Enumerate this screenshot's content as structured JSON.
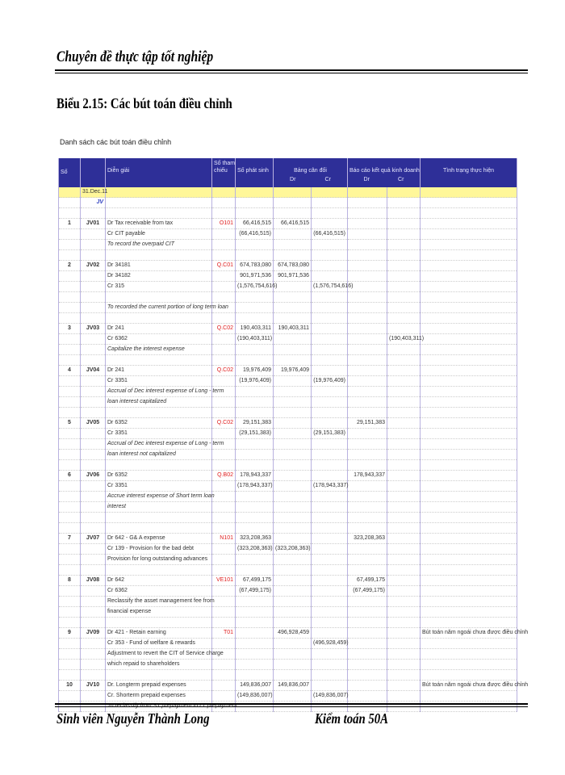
{
  "header": {
    "title": "Chuyên đề thực tập tốt nghiệp"
  },
  "doc_title": "Biểu 2.15: Các bút toán điều chỉnh",
  "table_title": "Danh sách các bút toán điều chỉnh",
  "columns": {
    "so": "Số",
    "dien_giai": "Diễn giải",
    "so_tham_chieu_1": "Số tham",
    "so_tham_chieu_2": "chiếu",
    "so_phat_sinh": "Số phát sinh",
    "bang_can_doi": "Bảng cân đối",
    "bao_cao_kqkd": "Báo cáo kết quả kinh doanh",
    "tinh_trang": "Tình trạng thực hiện",
    "dr": "Dr",
    "cr": "Cr"
  },
  "date_row": "31.Dec.11",
  "marker": "JV",
  "entries": [
    {
      "no": "1",
      "jv": "JV01",
      "ref": "O101",
      "lines": [
        [
          "Dr Tax receivable from tax",
          "66,416,515",
          "66,416,515",
          "",
          "",
          "",
          ""
        ],
        [
          "Cr CIT payable",
          "(66,416,515)",
          "",
          "(66,416,515)",
          "",
          "",
          ""
        ],
        [
          "To record the overpaid CIT",
          "",
          "",
          "",
          "",
          "",
          ""
        ]
      ],
      "gap": 1
    },
    {
      "no": "2",
      "jv": "JV02",
      "ref": "Q.C01",
      "lines": [
        [
          "Dr 34181",
          "674,783,080",
          "674,783,080",
          "",
          "",
          "",
          ""
        ],
        [
          "Dr 34182",
          "901,971,536",
          "901,971,536",
          "",
          "",
          "",
          ""
        ],
        [
          "Cr 315",
          "(1,576,754,616)",
          "",
          "(1,576,754,616)",
          "",
          "",
          ""
        ],
        [
          "",
          "",
          "",
          "",
          "",
          "",
          ""
        ],
        [
          "To recorded the current portion of long term loan",
          "",
          "",
          "",
          "",
          "",
          ""
        ]
      ],
      "gap": 1
    },
    {
      "no": "3",
      "jv": "JV03",
      "ref": "Q.C02",
      "lines": [
        [
          "Dr 241",
          "190,403,311",
          "190,403,311",
          "",
          "",
          "",
          ""
        ],
        [
          "Cr 6362",
          "(190,403,311)",
          "",
          "",
          "",
          "(190,403,311)",
          ""
        ],
        [
          "Capitalize the interest expense",
          "",
          "",
          "",
          "",
          "",
          ""
        ]
      ],
      "gap": 1
    },
    {
      "no": "4",
      "jv": "JV04",
      "ref": "Q.C02",
      "lines": [
        [
          "Dr 241",
          "19,976,409",
          "19,976,409",
          "",
          "",
          "",
          ""
        ],
        [
          "Cr 3351",
          "(19,976,409)",
          "",
          "(19,976,409)",
          "",
          "",
          ""
        ],
        [
          "Accrual of Dec interest expense of Long - term",
          "",
          "",
          "",
          "",
          "",
          ""
        ],
        [
          "loan interest capitalized",
          "",
          "",
          "",
          "",
          "",
          ""
        ]
      ],
      "gap": 1
    },
    {
      "no": "5",
      "jv": "JV05",
      "ref": "Q.C02",
      "lines": [
        [
          "Dr 6352",
          "29,151,383",
          "",
          "",
          "29,151,383",
          "",
          ""
        ],
        [
          "Cr 3351",
          "(29,151,383)",
          "",
          "(29,151,383)",
          "",
          "",
          ""
        ],
        [
          "Accrual of Dec interest expense of Long - term",
          "",
          "",
          "",
          "",
          "",
          ""
        ],
        [
          "loan interest not capitalized",
          "",
          "",
          "",
          "",
          "",
          ""
        ]
      ],
      "gap": 1
    },
    {
      "no": "6",
      "jv": "JV06",
      "ref": "Q.B02",
      "lines": [
        [
          "Dr 6352",
          "178,943,337",
          "",
          "",
          "178,943,337",
          "",
          ""
        ],
        [
          "Cr 3351",
          "(178,943,337)",
          "",
          "(178,943,337)",
          "",
          "",
          ""
        ],
        [
          "Accrue interest expense of Short term loan",
          "",
          "",
          "",
          "",
          "",
          ""
        ],
        [
          "interest",
          "",
          "",
          "",
          "",
          "",
          ""
        ]
      ],
      "gap": 2
    },
    {
      "no": "7",
      "jv": "JV07",
      "ref": "N101",
      "lines": [
        [
          "Dr 642 - G& A expense",
          "323,208,363",
          "",
          "",
          "323,208,363",
          "",
          ""
        ],
        [
          "Cr 139 - Provision for the bad debt",
          "(323,208,363)",
          "(323,208,363)",
          "",
          "",
          "",
          ""
        ],
        [
          "Provision for long outstanding advances",
          "",
          "",
          "",
          "",
          "",
          ""
        ]
      ],
      "gap": 1
    },
    {
      "no": "8",
      "jv": "JV08",
      "ref": "VE101",
      "lines": [
        [
          "Dr 642",
          "67,499,175",
          "",
          "",
          "67,499,175",
          "",
          ""
        ],
        [
          "Cr 6362",
          "(67,499,175)",
          "",
          "",
          "(67,499,175)",
          "",
          ""
        ],
        [
          "Reclassify the asset management fee from",
          "",
          "",
          "",
          "",
          "",
          ""
        ],
        [
          "financial expense",
          "",
          "",
          "",
          "",
          "",
          ""
        ]
      ],
      "gap": 1
    },
    {
      "no": "9",
      "jv": "JV09",
      "ref": "T01",
      "lines": [
        [
          "Dr 421 - Retain earning",
          "",
          "496,928,459",
          "",
          "",
          "",
          "Bút toán năm ngoái chưa được điều chỉnh"
        ],
        [
          "Cr 353 - Fund of welfare & rewards",
          "",
          "",
          "(496,928,459)",
          "",
          "",
          ""
        ],
        [
          "Adjustment to revert the CIT of Service charge",
          "",
          "",
          "",
          "",
          "",
          ""
        ],
        [
          "which repaid to shareholders",
          "",
          "",
          "",
          "",
          "",
          ""
        ]
      ],
      "gap": 1
    },
    {
      "no": "10",
      "jv": "JV10",
      "ref": "",
      "lines": [
        [
          "Dr. Longterm prepaid expenses",
          "149,836,007",
          "149,836,007",
          "",
          "",
          "",
          "Bút toán năm ngoái chưa được điều chỉnh"
        ],
        [
          "Cr. Shorterm prepaid expenses",
          "(149,836,007)",
          "",
          "(149,836,007)",
          "",
          "",
          ""
        ],
        [
          "To reclassify from ST prepayment to LT prepayment",
          "",
          "",
          "",
          "",
          "",
          ""
        ]
      ],
      "gap": 0
    }
  ],
  "footer": {
    "student": "Sinh viên Nguyễn Thành Long",
    "class": "Kiểm toán 50A"
  },
  "colors": {
    "header_bg": "#2e2f98",
    "date_row_bg": "#fff799",
    "ref_text": "#e02020"
  }
}
